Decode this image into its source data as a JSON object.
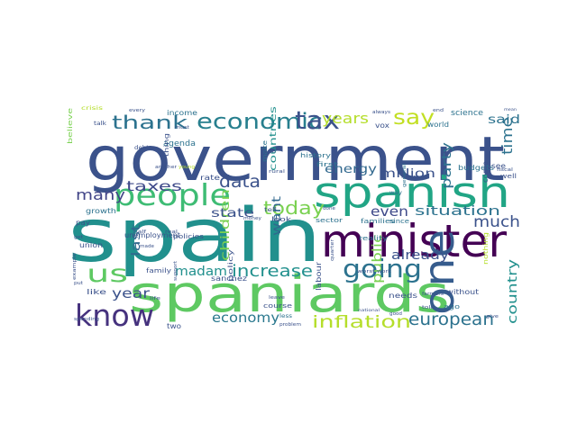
{
  "wordcloud": {
    "words": [
      {
        "text": "government",
        "color": "#3b528b"
      },
      {
        "text": "spain",
        "color": "#21908d"
      },
      {
        "text": "spaniards",
        "color": "#5ec962"
      },
      {
        "text": "spanish",
        "color": "#21a585"
      },
      {
        "text": "minister",
        "color": "#440154"
      },
      {
        "text": "people",
        "color": "#3ebc74"
      },
      {
        "text": "know",
        "color": "#46327e"
      },
      {
        "text": "one",
        "color": "#365c8d"
      },
      {
        "text": "us",
        "color": "#5ec962"
      },
      {
        "text": "economic",
        "color": "#277f8e"
      },
      {
        "text": "tax",
        "color": "#3b528b"
      },
      {
        "text": "say",
        "color": "#c2df23"
      },
      {
        "text": "going",
        "color": "#2c728e"
      },
      {
        "text": "thank",
        "color": "#2c728e"
      },
      {
        "text": "years",
        "color": "#b5de2b"
      },
      {
        "text": "today",
        "color": "#7ad151"
      },
      {
        "text": "data",
        "color": "#3b528b"
      },
      {
        "text": "taxes",
        "color": "#3e4989"
      },
      {
        "text": "many",
        "color": "#414487"
      },
      {
        "text": "inflation",
        "color": "#b5de2b"
      },
      {
        "text": "european",
        "color": "#2c728e"
      },
      {
        "text": "increase",
        "color": "#21908d"
      },
      {
        "text": "economy",
        "color": "#2a788e"
      },
      {
        "text": "much",
        "color": "#3b528b"
      },
      {
        "text": "time",
        "color": "#2c728e"
      },
      {
        "text": "country",
        "color": "#21908d"
      },
      {
        "text": "said",
        "color": "#2c728e"
      },
      {
        "text": "year",
        "color": "#3b528b"
      },
      {
        "text": "madam",
        "color": "#21908d"
      },
      {
        "text": "public",
        "color": "#7ad151"
      },
      {
        "text": "even",
        "color": "#3e4989"
      },
      {
        "text": "already",
        "color": "#3b528b"
      },
      {
        "text": "situation",
        "color": "#2c728e"
      },
      {
        "text": "party",
        "color": "#2c728e"
      },
      {
        "text": "million",
        "color": "#3b528b"
      },
      {
        "text": "energy",
        "color": "#31688e"
      },
      {
        "text": "want",
        "color": "#31688e"
      },
      {
        "text": "children",
        "color": "#7ad151"
      },
      {
        "text": "state",
        "color": "#3b528b"
      },
      {
        "text": "last",
        "color": "#31688e"
      },
      {
        "text": "countries",
        "color": "#21908d"
      },
      {
        "text": "science",
        "color": "#2c728e"
      },
      {
        "text": "agenda",
        "color": "#2c728e"
      },
      {
        "text": "income",
        "color": "#2c728e"
      },
      {
        "text": "unemployment",
        "color": "#3b528b"
      },
      {
        "text": "sanchez",
        "color": "#3b528b"
      },
      {
        "text": "like",
        "color": "#3b528b"
      },
      {
        "text": "needs",
        "color": "#3b528b"
      },
      {
        "text": "families",
        "color": "#2c728e"
      },
      {
        "text": "since",
        "color": "#2c728e"
      },
      {
        "text": "reality",
        "color": "#2c728e"
      },
      {
        "text": "sector",
        "color": "#2c728e"
      },
      {
        "text": "first",
        "color": "#2c728e"
      },
      {
        "text": "budgets",
        "color": "#2c728e"
      },
      {
        "text": "policy",
        "color": "#3b528b"
      },
      {
        "text": "labour",
        "color": "#3b528b"
      },
      {
        "text": "history",
        "color": "#2c728e"
      },
      {
        "text": "course",
        "color": "#3b528b"
      },
      {
        "text": "make",
        "color": "#2c728e"
      },
      {
        "text": "look",
        "color": "#3b528b"
      },
      {
        "text": "rate",
        "color": "#3b528b"
      },
      {
        "text": "growth",
        "color": "#2c728e"
      },
      {
        "text": "pay",
        "color": "#3b528b"
      },
      {
        "text": "union",
        "color": "#3b528b"
      },
      {
        "text": "family",
        "color": "#3b528b"
      },
      {
        "text": "two",
        "color": "#3b528b"
      },
      {
        "text": "without",
        "color": "#3b528b"
      },
      {
        "text": "see",
        "color": "#3b528b"
      },
      {
        "text": "come",
        "color": "#3b528b"
      },
      {
        "text": "world",
        "color": "#2c728e"
      },
      {
        "text": "vox",
        "color": "#3b528b"
      },
      {
        "text": "well",
        "color": "#3b528b"
      },
      {
        "text": "ago",
        "color": "#2c728e"
      },
      {
        "text": "policies",
        "color": "#3b528b"
      },
      {
        "text": "thing",
        "color": "#3b528b"
      },
      {
        "text": "every",
        "color": "#3b528b"
      },
      {
        "text": "always",
        "color": "#3b528b"
      },
      {
        "text": "future",
        "color": "#3b528b"
      },
      {
        "text": "general",
        "color": "#2c728e"
      },
      {
        "text": "rural",
        "color": "#3b528b"
      },
      {
        "text": "birth",
        "color": "#3b528b"
      },
      {
        "text": "debt",
        "color": "#3b528b"
      },
      {
        "text": "believe",
        "color": "#7ad151"
      },
      {
        "text": "crisis",
        "color": "#b5de2b"
      },
      {
        "text": "talk",
        "color": "#3b528b"
      },
      {
        "text": "must",
        "color": "#3b528b"
      },
      {
        "text": "another",
        "color": "#3b528b"
      },
      {
        "text": "young",
        "color": "#b5de2b"
      },
      {
        "text": "tell",
        "color": "#3b528b"
      },
      {
        "text": "money",
        "color": "#3b528b"
      },
      {
        "text": "half",
        "color": "#3b528b"
      },
      {
        "text": "real",
        "color": "#3b528b"
      },
      {
        "text": "support",
        "color": "#3b528b"
      },
      {
        "text": "life",
        "color": "#3b528b"
      },
      {
        "text": "less",
        "color": "#2c728e"
      },
      {
        "text": "problem",
        "color": "#3b528b"
      },
      {
        "text": "leave",
        "color": "#3b528b"
      },
      {
        "text": "quarter",
        "color": "#3b528b"
      },
      {
        "text": "worst",
        "color": "#3b528b"
      },
      {
        "text": "work",
        "color": "#3b528b"
      },
      {
        "text": "national",
        "color": "#3b528b"
      },
      {
        "text": "good",
        "color": "#3b528b"
      },
      {
        "text": "farmers",
        "color": "#3b528b"
      },
      {
        "text": "told",
        "color": "#3b528b"
      },
      {
        "text": "nothing",
        "color": "#b5de2b"
      },
      {
        "text": "give",
        "color": "#3b528b"
      },
      {
        "text": "fiscal",
        "color": "#3b528b"
      },
      {
        "text": "mean",
        "color": "#3b528b"
      },
      {
        "text": "end",
        "color": "#3b528b"
      },
      {
        "text": "way",
        "color": "#2c728e"
      },
      {
        "text": "done",
        "color": "#3b528b"
      },
      {
        "text": "get",
        "color": "#3b528b"
      },
      {
        "text": "example",
        "color": "#3b528b"
      },
      {
        "text": "put",
        "color": "#3b528b"
      },
      {
        "text": "made",
        "color": "#3b528b"
      },
      {
        "text": "spending",
        "color": "#3b528b"
      }
    ]
  }
}
